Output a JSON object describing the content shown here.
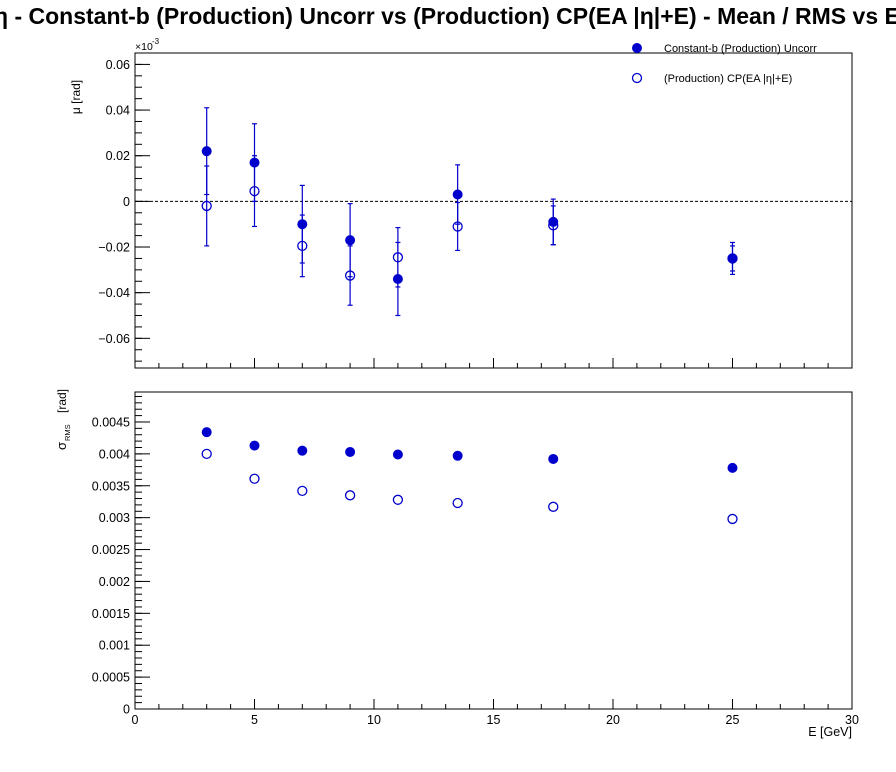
{
  "title": "η  -  Constant-b (Production) Uncorr vs (Production) CP(EA |η|+E)  -  Mean / RMS vs E",
  "colors": {
    "series": "#0000cc",
    "axis": "#000000",
    "background": "#ffffff"
  },
  "chart_data": [
    {
      "type": "scatter",
      "panel": "mean",
      "ylabel": "μ  [rad]",
      "y_multiplier_label": "×10",
      "y_multiplier_exp": "-3",
      "xlim": [
        0,
        30
      ],
      "ylim": [
        -0.073,
        0.065
      ],
      "yticks": [
        -0.06,
        -0.04,
        -0.02,
        0,
        0.02,
        0.04,
        0.06
      ],
      "ytick_labels": [
        "−0.06",
        "−0.04",
        "−0.02",
        "0",
        "0.02",
        "0.04",
        "0.06"
      ],
      "reference_line": 0,
      "legend_position": "top-right",
      "series": [
        {
          "name": "Constant-b (Production) Uncorr",
          "marker": "filled-circle",
          "x": [
            3,
            5,
            7,
            9,
            11,
            13.5,
            17.5,
            25
          ],
          "y": [
            0.022,
            0.017,
            -0.01,
            -0.017,
            -0.034,
            0.003,
            -0.009,
            -0.025
          ],
          "err": [
            0.019,
            0.017,
            0.017,
            0.016,
            0.016,
            0.013,
            0.01,
            0.007
          ]
        },
        {
          "name": "(Production) CP(EA |η|+E)",
          "marker": "open-circle",
          "x": [
            3,
            5,
            7,
            9,
            11,
            13.5,
            17.5,
            25
          ],
          "y": [
            -0.002,
            0.0045,
            -0.0195,
            -0.0325,
            -0.0245,
            -0.011,
            -0.0105,
            -0.025
          ],
          "err": [
            0.0175,
            0.0155,
            0.0135,
            0.013,
            0.013,
            0.0105,
            0.0085,
            0.0055
          ]
        }
      ]
    },
    {
      "type": "scatter",
      "panel": "rms",
      "ylabel_main": "σ",
      "ylabel_sub": "RMS",
      "ylabel_unit": "[rad]",
      "xlabel": "E  [GeV]",
      "xlim": [
        0,
        30
      ],
      "ylim": [
        0,
        0.00497
      ],
      "xticks": [
        0,
        5,
        10,
        15,
        20,
        25,
        30
      ],
      "xtick_labels": [
        "0",
        "5",
        "10",
        "15",
        "20",
        "25",
        "30"
      ],
      "yticks": [
        0,
        0.0005,
        0.001,
        0.0015,
        0.002,
        0.0025,
        0.003,
        0.0035,
        0.004,
        0.0045
      ],
      "ytick_labels": [
        "0",
        "0.0005",
        "0.001",
        "0.0015",
        "0.002",
        "0.0025",
        "0.003",
        "0.0035",
        "0.004",
        "0.0045"
      ],
      "series": [
        {
          "name": "Constant-b (Production) Uncorr",
          "marker": "filled-circle",
          "x": [
            3,
            5,
            7,
            9,
            11,
            13.5,
            17.5,
            25
          ],
          "y": [
            0.00434,
            0.00413,
            0.00405,
            0.00403,
            0.00399,
            0.00397,
            0.00392,
            0.00378
          ]
        },
        {
          "name": "(Production) CP(EA |η|+E)",
          "marker": "open-circle",
          "x": [
            3,
            5,
            7,
            9,
            11,
            13.5,
            17.5,
            25
          ],
          "y": [
            0.004,
            0.00361,
            0.00342,
            0.00335,
            0.00328,
            0.00323,
            0.00317,
            0.00298
          ]
        }
      ]
    }
  ]
}
